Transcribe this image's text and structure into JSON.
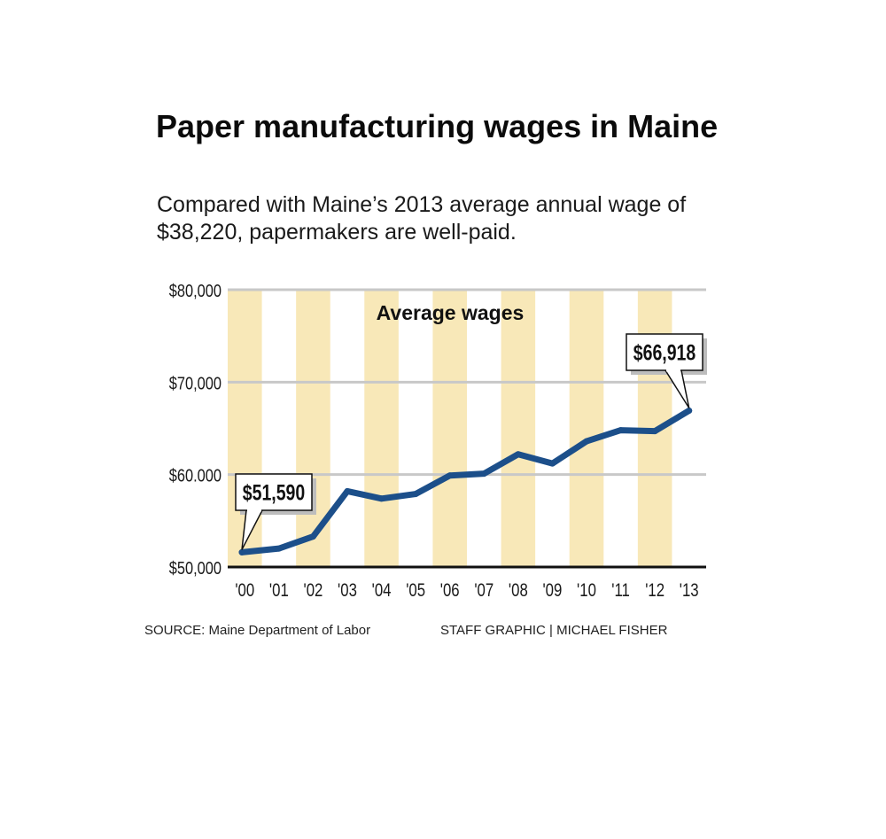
{
  "title": "Paper manufacturing wages in Maine",
  "subtitle": "Compared with Maine’s 2013 average annual wage of $38,220, papermakers are well-paid.",
  "footer": {
    "source": "SOURCE: Maine Department of Labor",
    "credit": "STAFF GRAPHIC | MICHAEL FISHER"
  },
  "colors": {
    "line": "#1c4f8a",
    "band": "#f8e8b8",
    "grid": "#c8c8c8",
    "axis": "#111111"
  },
  "chart_data": {
    "type": "line",
    "title": "Average wages",
    "xlabel": "",
    "ylabel": "",
    "categories": [
      "'00",
      "'01",
      "'02",
      "'03",
      "'04",
      "'05",
      "'06",
      "'07",
      "'08",
      "'09",
      "'10",
      "'11",
      "'12",
      "'13"
    ],
    "series": [
      {
        "name": "",
        "values": [
          51590,
          52000,
          53300,
          58200,
          57400,
          57900,
          59900,
          60100,
          62200,
          61200,
          63600,
          64800,
          64700,
          66918
        ]
      }
    ],
    "ylim": [
      50000,
      80000
    ],
    "yticks": [
      50000,
      60000,
      70000,
      80000
    ],
    "ytick_labels": [
      "$50,000",
      "$60.000",
      "$70,000",
      "$80,000"
    ],
    "grid": true,
    "annotations": [
      {
        "index": 0,
        "label": "$51,590"
      },
      {
        "index": 13,
        "label": "$66,918"
      }
    ]
  }
}
